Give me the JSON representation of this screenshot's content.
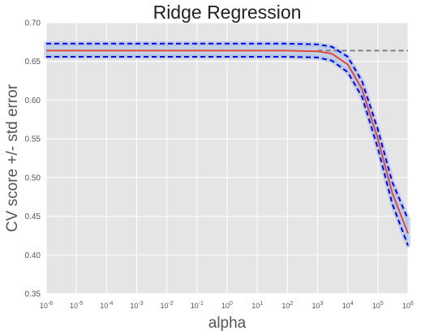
{
  "chart_data": {
    "type": "line",
    "title": "Ridge Regression",
    "xlabel": "alpha",
    "ylabel": "CV score +/- std error",
    "xscale": "log",
    "xlim": [
      1e-06,
      1000000.0
    ],
    "ylim": [
      0.35,
      0.7
    ],
    "grid": true,
    "legend": "none",
    "x_tick_exponents": [
      "-6",
      "-5",
      "-4",
      "-3",
      "-2",
      "-1",
      "0",
      "1",
      "2",
      "3",
      "4",
      "5",
      "6"
    ],
    "y_ticks": [
      "0.35",
      "0.40",
      "0.45",
      "0.50",
      "0.55",
      "0.60",
      "0.65",
      "0.70"
    ],
    "x": [
      1e-06,
      1e-05,
      0.0001,
      0.001,
      0.01,
      0.1,
      1,
      10,
      100,
      1000,
      3000,
      10000,
      30000,
      100000,
      300000,
      1000000
    ],
    "series": [
      {
        "role": "mean",
        "style": "solid",
        "values": [
          0.664,
          0.664,
          0.664,
          0.664,
          0.664,
          0.664,
          0.664,
          0.664,
          0.664,
          0.663,
          0.66,
          0.646,
          0.614,
          0.55,
          0.48,
          0.428
        ]
      },
      {
        "role": "mean + std",
        "style": "dashed",
        "values": [
          0.673,
          0.673,
          0.673,
          0.673,
          0.673,
          0.673,
          0.673,
          0.673,
          0.673,
          0.672,
          0.669,
          0.656,
          0.624,
          0.562,
          0.494,
          0.446
        ]
      },
      {
        "role": "mean - std",
        "style": "dashed",
        "values": [
          0.656,
          0.656,
          0.656,
          0.656,
          0.656,
          0.656,
          0.656,
          0.656,
          0.656,
          0.655,
          0.651,
          0.636,
          0.604,
          0.538,
          0.466,
          0.412
        ]
      }
    ],
    "reference_line": {
      "y": 0.664,
      "x_from": 1000,
      "x_to": 1000000,
      "style": "dashed"
    },
    "colors": {
      "background": "#e5e5e5",
      "grid": "#ffffff",
      "mean": "#e24a33",
      "std": "#0000ff",
      "band": "#a8c0e8",
      "reference": "#808080"
    }
  }
}
